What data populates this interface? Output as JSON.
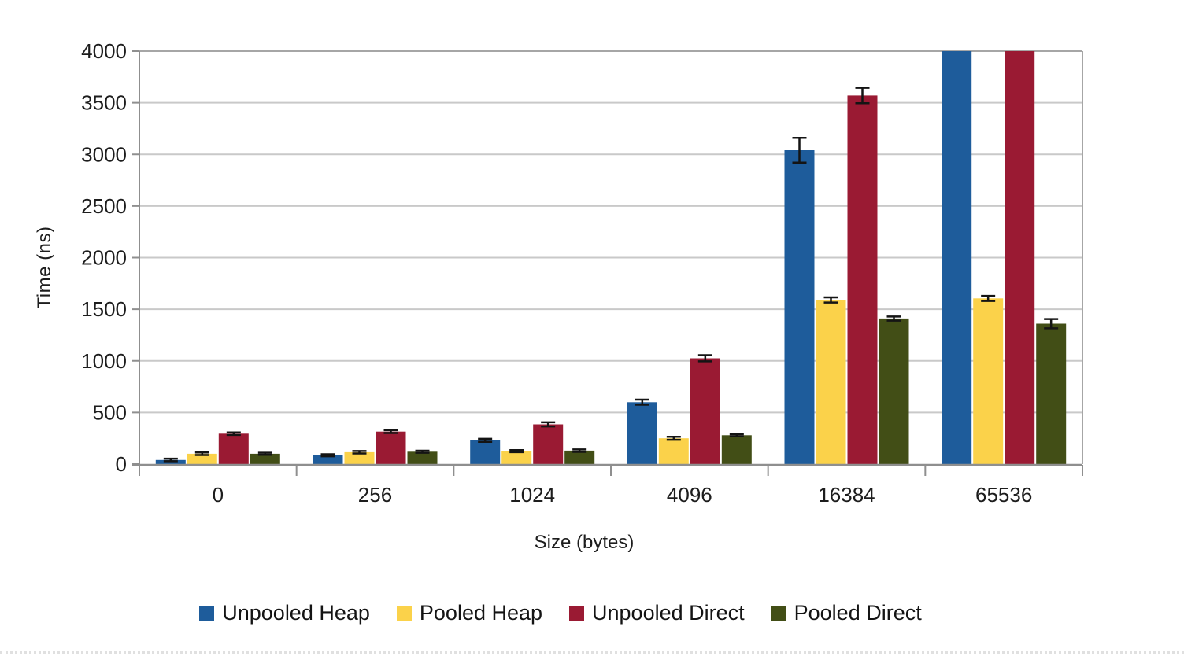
{
  "chart_data": {
    "type": "bar",
    "title": "",
    "xlabel": "Size (bytes)",
    "ylabel": "Time (ns)",
    "categories": [
      "0",
      "256",
      "1024",
      "4096",
      "16384",
      "65536"
    ],
    "ylim": [
      0,
      4000
    ],
    "ytick_step": 500,
    "yticks": [
      0,
      500,
      1000,
      1500,
      2000,
      2500,
      3000,
      3500,
      4000
    ],
    "grid": true,
    "legend_position": "bottom",
    "error_bars": true,
    "clip_note": "values above ylim are drawn clipped at 4000",
    "series": [
      {
        "name": "Unpooled Heap",
        "color": "#1e5c9b",
        "values": [
          40,
          85,
          230,
          600,
          3040,
          4450
        ],
        "errors": [
          12,
          10,
          15,
          25,
          120,
          0
        ]
      },
      {
        "name": "Pooled Heap",
        "color": "#fbd24a",
        "values": [
          100,
          115,
          125,
          250,
          1590,
          1605
        ],
        "errors": [
          12,
          12,
          10,
          15,
          25,
          25
        ]
      },
      {
        "name": "Unpooled Direct",
        "color": "#9a1a33",
        "values": [
          295,
          315,
          385,
          1025,
          3570,
          4450
        ],
        "errors": [
          12,
          14,
          20,
          30,
          75,
          0
        ]
      },
      {
        "name": "Pooled Direct",
        "color": "#424e16",
        "values": [
          100,
          120,
          130,
          280,
          1410,
          1360
        ],
        "errors": [
          10,
          10,
          12,
          10,
          20,
          45
        ]
      }
    ]
  },
  "colors": {
    "gridline": "#c9c9c9",
    "frame": "#a6a6a6",
    "axis_line": "#8f8f8f",
    "tick_text": "#1d1d1d",
    "error_bar": "#141414",
    "page_edge_dots": "#e0e0e0"
  }
}
